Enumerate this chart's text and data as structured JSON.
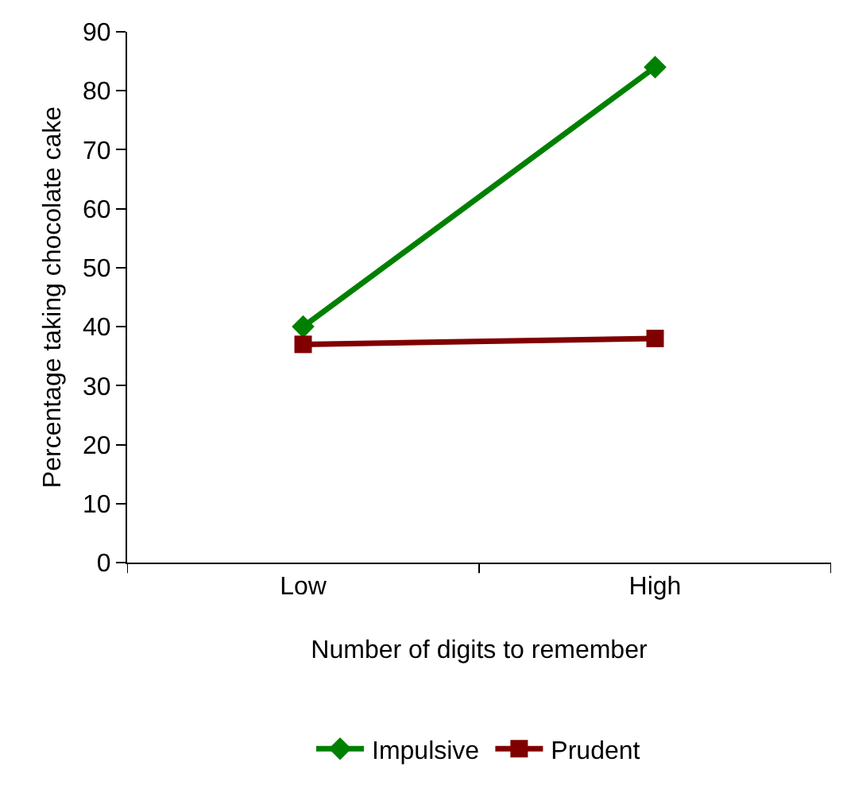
{
  "chart_data": {
    "type": "line",
    "xlabel": "Number of digits to remember",
    "ylabel": "Percentage taking chocolate cake",
    "categories": [
      "Low",
      "High"
    ],
    "series": [
      {
        "name": "Impulsive",
        "color": "#008000",
        "marker": "diamond",
        "values": [
          40,
          84
        ]
      },
      {
        "name": "Prudent",
        "color": "#800000",
        "marker": "square",
        "values": [
          37,
          38
        ]
      }
    ],
    "ylim": [
      0,
      90
    ],
    "yticks": [
      0,
      10,
      20,
      30,
      40,
      50,
      60,
      70,
      80,
      90
    ],
    "grid": false,
    "legend": "bottom",
    "line_style": "solid"
  }
}
